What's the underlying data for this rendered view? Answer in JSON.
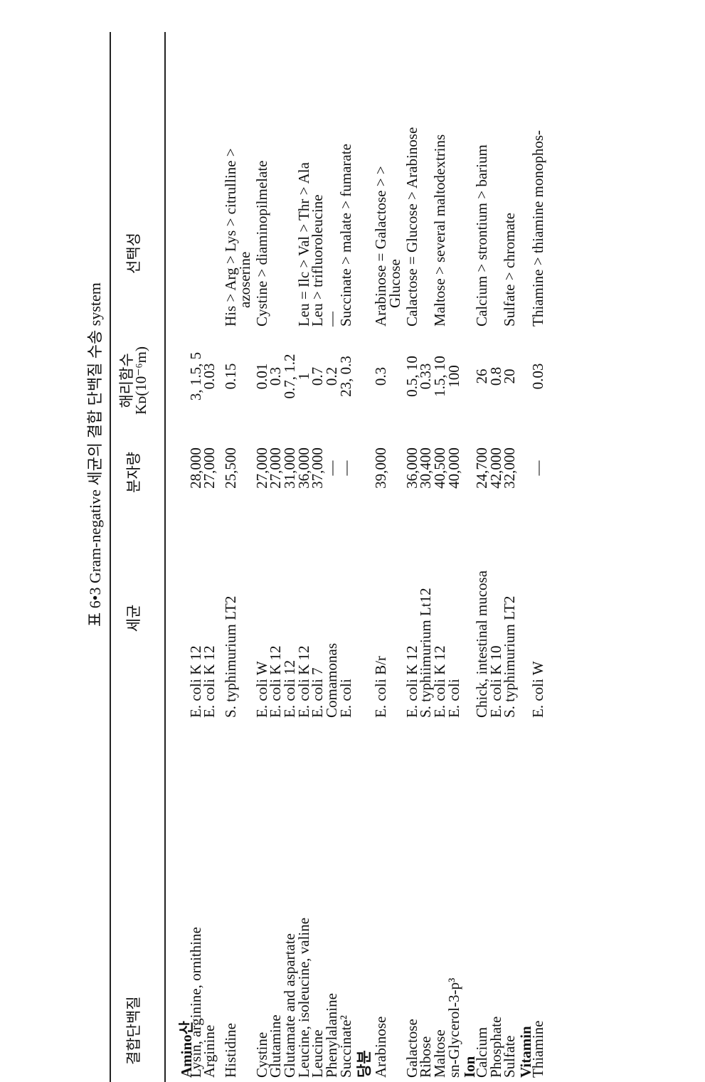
{
  "title": "표 6•3  Gram-negative 세균의 결합 단백질 수송 system",
  "header": {
    "protein": "결합단백질",
    "organism": "세균",
    "mw": "분자량",
    "kd": [
      "해리함수",
      "Kᴅ(10⁻⁶m)"
    ],
    "selectivity": "선택성"
  },
  "table": {
    "rows": [
      {
        "section": "Amino산"
      },
      {
        "protein": "Lysin, arginine, ornithine",
        "organism": "E. coli K 12",
        "mw": "28,000",
        "kd": "3, 1.5, 5"
      },
      {
        "protein": "Arginine",
        "organism": "E. coli K 12",
        "mw": "27,000",
        "kd": "0.03"
      },
      {
        "protein": "Histidine",
        "organism": "S. typhimurium LT2",
        "mw": "25,500",
        "kd": "0.15",
        "selectivity": [
          "His > Arg > Lys > citrulline >",
          "azoserine"
        ]
      },
      {
        "protein": "Cystine",
        "organism": "E. coli W",
        "mw": "27,000",
        "kd": "0.01",
        "selectivity": [
          "Cystine > diaminopilmelate"
        ]
      },
      {
        "protein": "Glutamine",
        "organism": "E. coli K 12",
        "mw": "27,000",
        "kd": "0.3"
      },
      {
        "protein": "Glutamate and aspartate",
        "organism": "E. coli 12",
        "mw": "31,000",
        "kd": "0.7, 1.2"
      },
      {
        "protein": "Leucine, isoleucine, valine",
        "organism": "E. coli K 12",
        "mw": "36,000",
        "kd": "1",
        "selectivity": [
          "Leu = Ilc > Val > Thr > Ala"
        ]
      },
      {
        "protein": "Leucine",
        "organism": "E. coli 7",
        "mw": "37,000",
        "kd": "0.7",
        "selectivity": [
          "Leu > trifluoroleucine"
        ]
      },
      {
        "protein": "Phenylalanine",
        "organism": "Comamonas",
        "mw": "—",
        "kd": "0.2",
        "selectivity": [
          "—"
        ]
      },
      {
        "protein": "Succinate²",
        "organism": "E. coli",
        "mw": "—",
        "kd": "23, 0.3",
        "selectivity": [
          "Succinate > malate > fumarate"
        ]
      },
      {
        "section": "당분"
      },
      {
        "protein": "Arabinose",
        "organism": "E. coli B/r",
        "mw": "39,000",
        "kd": "0.3",
        "selectivity": [
          "Arabinose = Galactose > >",
          "Glucose"
        ]
      },
      {
        "protein": "Galactose",
        "organism": "E. coli K 12",
        "mw": "36,000",
        "kd": "0.5, 10",
        "selectivity": [
          "Calactose = Glucose > Arabinose"
        ]
      },
      {
        "protein": "Ribose",
        "organism": "S. typhiimurium Lt12",
        "mw": "30,400",
        "kd": "0.33"
      },
      {
        "protein": "Maltose",
        "organism": "E. coli K 12",
        "mw": "40,500",
        "kd": "1.5, 10",
        "selectivity": [
          "Maltose > several maltodextrins"
        ]
      },
      {
        "protein": "sn-Glycerol-3-p³",
        "organism": "E. coli",
        "mw": "40,000",
        "kd": "100"
      },
      {
        "section": "Ion"
      },
      {
        "protein": "Calcium",
        "organism": "Chick, intestinal mucosa",
        "mw": "24,700",
        "kd": "26",
        "selectivity": [
          "Calcium > strontium > barium"
        ]
      },
      {
        "protein": "Phosphate",
        "organism": "E. coli K 10",
        "mw": "42,000",
        "kd": "0.8"
      },
      {
        "protein": "Sulfate",
        "organism": "S. typhimurium LT2",
        "mw": "32,000",
        "kd": "20",
        "selectivity": [
          "Sulfate > chromate"
        ]
      },
      {
        "section": "Vitamin"
      },
      {
        "protein": "Thiamine",
        "organism": "E. coli W",
        "mw": "—",
        "kd": "0.03",
        "selectivity": [
          "Thiamine > thiamine monophos-"
        ]
      }
    ]
  }
}
